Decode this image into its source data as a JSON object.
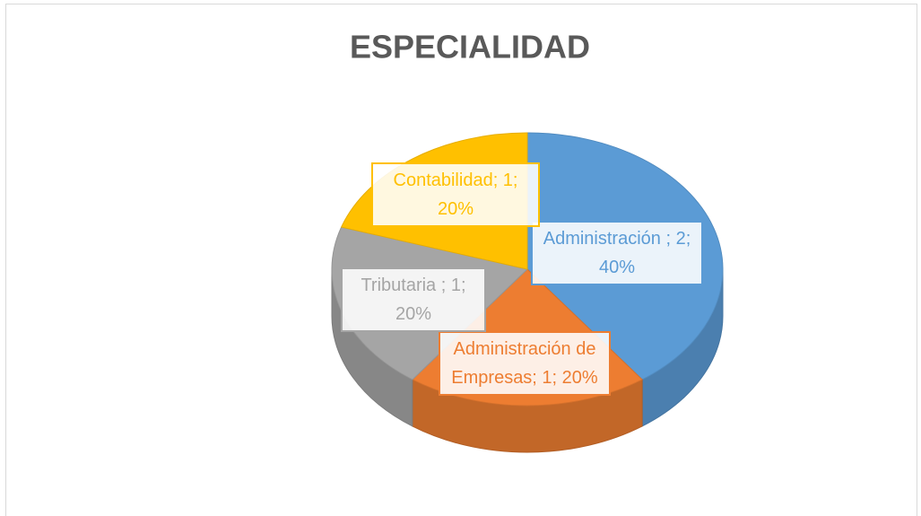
{
  "chart_data": {
    "type": "pie3d",
    "title": "ESPECIALIDAD",
    "categories": [
      "Administración ",
      "Administración de Empresas",
      "Tributaria ",
      "Contabilidad"
    ],
    "values": [
      2,
      1,
      1,
      1
    ],
    "value_labels": [
      "Administración ; 2; 40%",
      "Administración de Empresas; 1; 20%",
      "Tributaria ; 1; 20%",
      "Contabilidad; 1; 20%"
    ],
    "colors": [
      "#5b9bd5",
      "#ed7d31",
      "#a5a5a5",
      "#ffc000"
    ]
  }
}
